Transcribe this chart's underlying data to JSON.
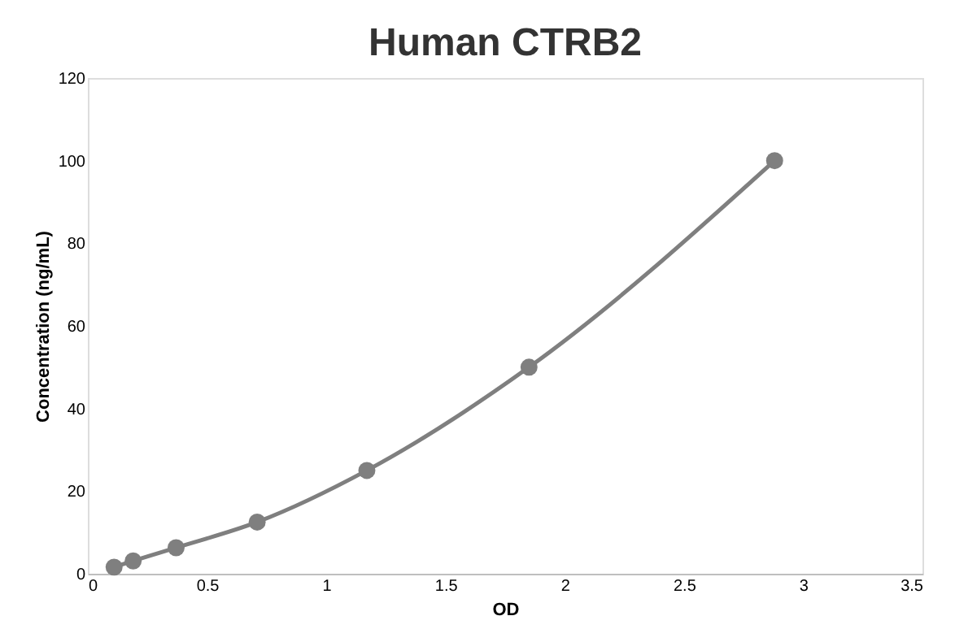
{
  "chart_data": {
    "type": "line",
    "title": "Human CTRB2",
    "xlabel": "OD",
    "ylabel": "Concentration (ng/mL)",
    "x": [
      0.11,
      0.19,
      0.37,
      0.71,
      1.17,
      1.85,
      2.88
    ],
    "series": [
      {
        "color": "#7f7f7f",
        "values": [
          1.6,
          3.1,
          6.3,
          12.5,
          25,
          50,
          100
        ]
      }
    ],
    "xlim": [
      0,
      3.5
    ],
    "xticks": [
      0,
      0.5,
      1,
      1.5,
      2,
      2.5,
      3,
      3.5
    ],
    "ylim": [
      0,
      120
    ],
    "yticks": [
      0,
      20,
      40,
      60,
      80,
      100,
      120
    ],
    "marker": "circle",
    "line_style": "solid",
    "grid": false,
    "legend": false
  }
}
